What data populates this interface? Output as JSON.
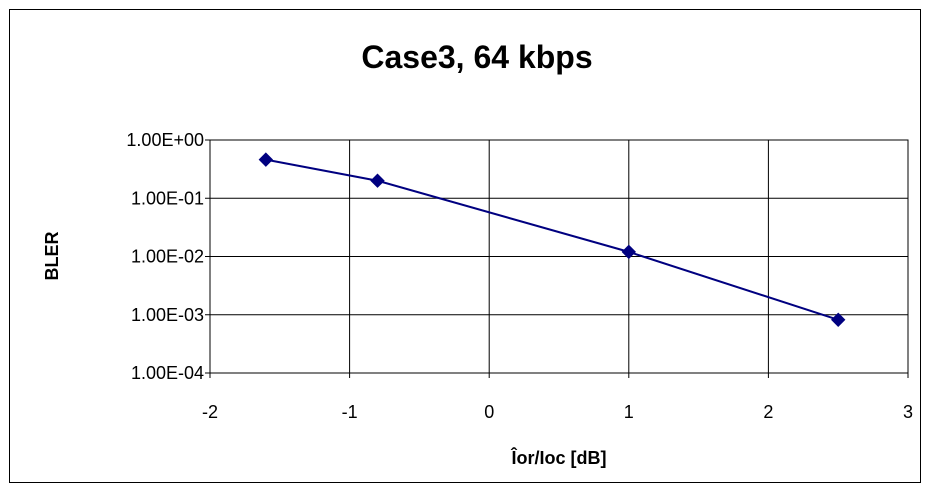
{
  "chart_data": {
    "type": "line",
    "title": "Case3, 64 kbps",
    "xlabel": "Îor/Ioc [dB]",
    "ylabel": "BLER",
    "xlim": [
      -2,
      3
    ],
    "ylim": [
      0.0001,
      1
    ],
    "yscale": "log",
    "x_ticks": [
      -2,
      -1,
      0,
      1,
      2,
      3
    ],
    "x_tick_labels": [
      "-2",
      "-1",
      "0",
      "1",
      "2",
      "3"
    ],
    "y_ticks": [
      1,
      0.1,
      0.01,
      0.001,
      0.0001
    ],
    "y_tick_labels": [
      "1.00E+00",
      "1.00E-01",
      "1.00E-02",
      "1.00E-03",
      "1.00E-04"
    ],
    "grid": true,
    "legend": "none",
    "series": [
      {
        "color": "#000080",
        "marker": "diamond",
        "x": [
          -1.6,
          -0.8,
          1.0,
          2.5
        ],
        "y": [
          0.46,
          0.2,
          0.012,
          0.00082
        ]
      }
    ]
  }
}
